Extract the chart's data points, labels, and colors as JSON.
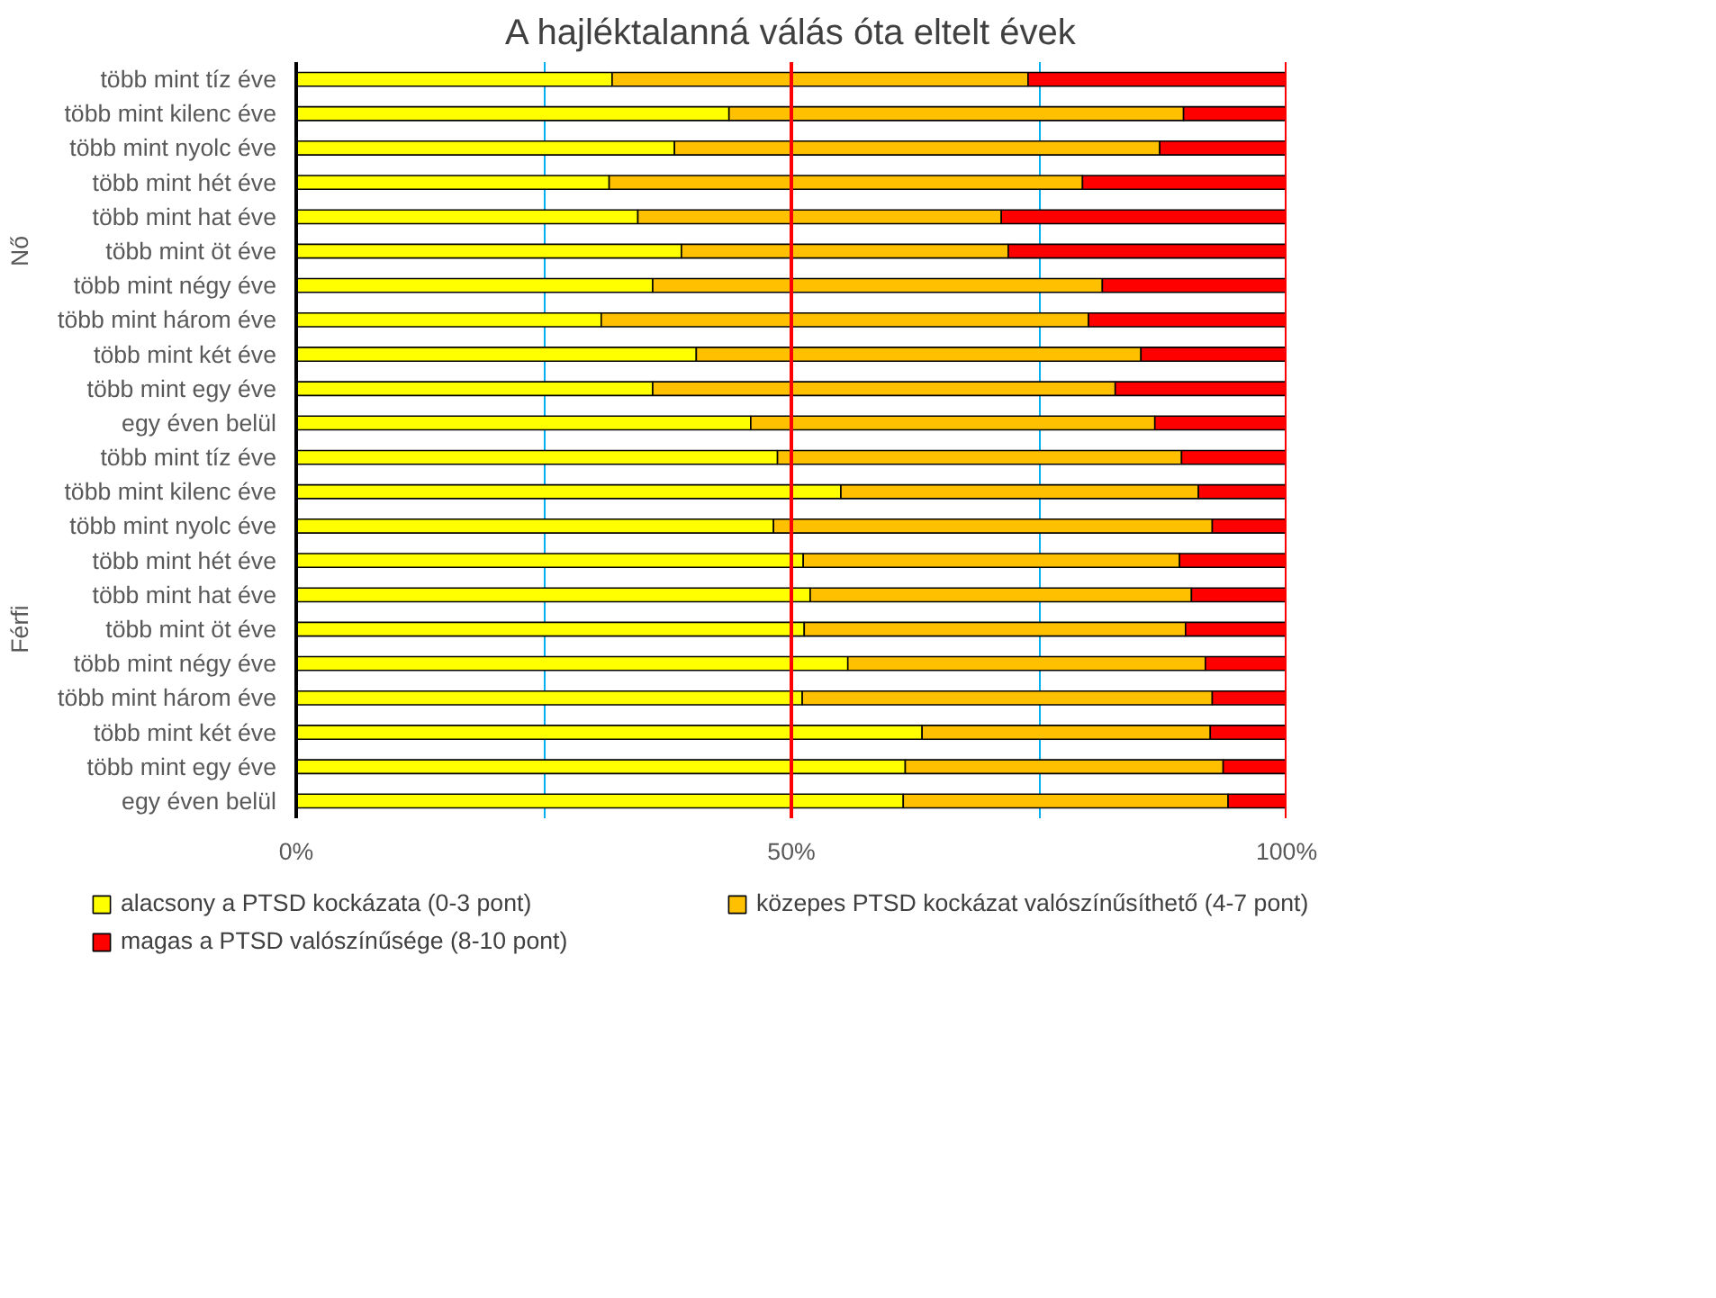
{
  "chart_data": {
    "type": "bar",
    "orientation": "horizontal",
    "stacked": true,
    "title": "A hajléktalanná válás óta eltelt évek",
    "categories": [
      "több mint tíz éve",
      "több mint kilenc éve",
      "több mint nyolc éve",
      "több mint hét éve",
      "több mint hat éve",
      "több mint öt éve",
      "több mint négy éve",
      "több mint három éve",
      "több mint két éve",
      "több mint egy éve",
      "egy éven belül",
      "több mint tíz éve",
      "több mint kilenc éve",
      "több mint nyolc éve",
      "több mint hét éve",
      "több mint hat éve",
      "több mint öt éve",
      "több mint négy éve",
      "több mint három éve",
      "több mint két éve",
      "több mint egy éve",
      "egy éven belül"
    ],
    "series": [
      {
        "name": "alacsony a PTSD kockázata (0-3 pont)",
        "color": "#ffff00",
        "values": [
          31.9,
          43.7,
          38.2,
          31.6,
          34.5,
          38.9,
          36.0,
          30.8,
          40.4,
          36.0,
          45.9,
          48.6,
          55.0,
          48.2,
          51.2,
          51.9,
          51.3,
          55.7,
          51.1,
          63.2,
          61.5,
          61.3
        ]
      },
      {
        "name": "közepes PTSD kockázat valószínűsíthető (4-7 pont)",
        "color": "#ffc000",
        "values": [
          42.0,
          45.9,
          49.0,
          47.8,
          36.7,
          33.0,
          45.4,
          49.2,
          44.9,
          46.7,
          40.8,
          40.8,
          36.1,
          44.3,
          38.0,
          38.5,
          38.5,
          36.1,
          41.4,
          29.1,
          32.1,
          32.8
        ]
      },
      {
        "name": "magas a PTSD valószínűsége (8-10 pont)",
        "color": "#ff0000",
        "values": [
          26.1,
          10.4,
          12.8,
          20.6,
          28.8,
          28.1,
          18.6,
          20.0,
          14.7,
          17.3,
          13.3,
          10.6,
          8.9,
          7.5,
          10.8,
          9.6,
          10.2,
          8.2,
          7.5,
          7.7,
          6.4,
          5.9
        ]
      }
    ],
    "annotations": [
      "Nő",
      "Férfi"
    ],
    "xlim": [
      0,
      100
    ],
    "xticks": [
      {
        "value": 0,
        "label": "0%"
      },
      {
        "value": 25,
        "label": null
      },
      {
        "value": 50,
        "label": "50%"
      },
      {
        "value": 75,
        "label": null
      },
      {
        "value": 100,
        "label": "100%"
      }
    ],
    "grid": "x",
    "ref_lines": [
      {
        "axis": "x",
        "value": 50,
        "label": null,
        "color": "#ff0000"
      },
      {
        "axis": "x",
        "value": 100,
        "label": null,
        "color": "#ff0000"
      }
    ],
    "legend": "bottom"
  }
}
